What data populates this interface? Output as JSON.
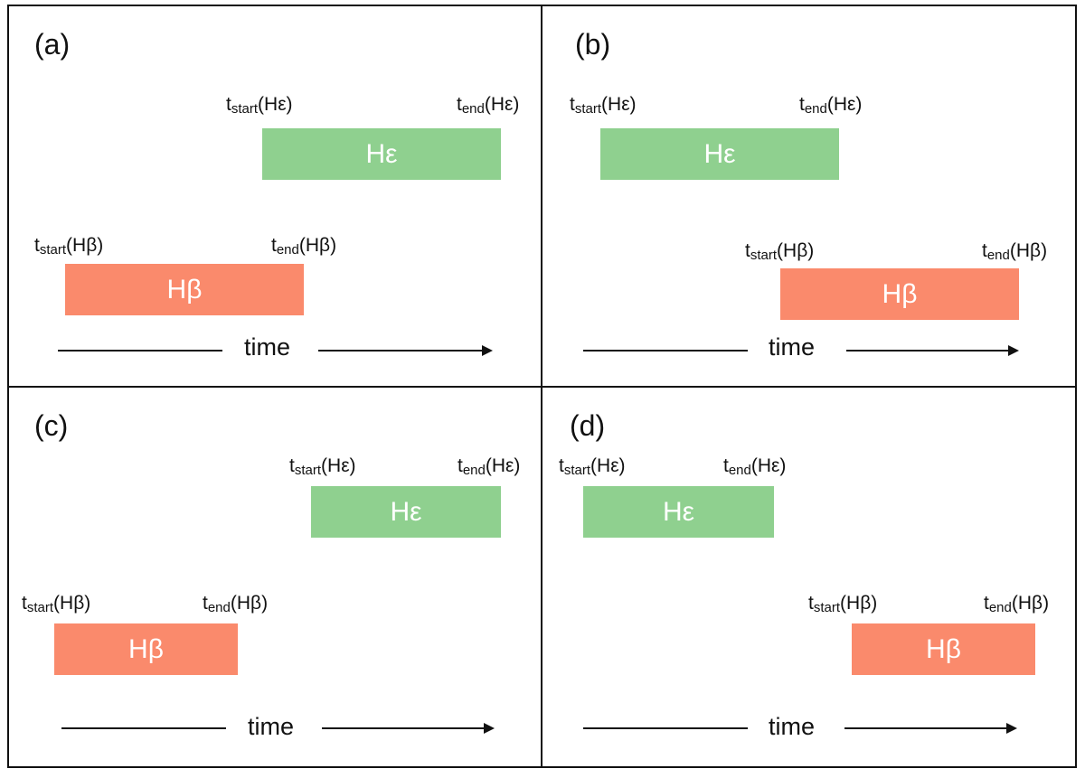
{
  "panels": [
    {
      "letter": "(a)",
      "he": {
        "name": "Hε",
        "start_label": {
          "t": "t",
          "sub": "start",
          "arg": "(Hε)"
        },
        "end_label": {
          "t": "t",
          "sub": "end",
          "arg": "(Hε)"
        }
      },
      "hb": {
        "name": "Hβ",
        "start_label": {
          "t": "t",
          "sub": "start",
          "arg": "(Hβ)"
        },
        "end_label": {
          "t": "t",
          "sub": "end",
          "arg": "(Hβ)"
        }
      },
      "axis_label": "time"
    },
    {
      "letter": "(b)",
      "he": {
        "name": "Hε",
        "start_label": {
          "t": "t",
          "sub": "start",
          "arg": "(Hε)"
        },
        "end_label": {
          "t": "t",
          "sub": "end",
          "arg": "(Hε)"
        }
      },
      "hb": {
        "name": "Hβ",
        "start_label": {
          "t": "t",
          "sub": "start",
          "arg": "(Hβ)"
        },
        "end_label": {
          "t": "t",
          "sub": "end",
          "arg": "(Hβ)"
        }
      },
      "axis_label": "time"
    },
    {
      "letter": "(c)",
      "he": {
        "name": "Hε",
        "start_label": {
          "t": "t",
          "sub": "start",
          "arg": "(Hε)"
        },
        "end_label": {
          "t": "t",
          "sub": "end",
          "arg": "(Hε)"
        }
      },
      "hb": {
        "name": "Hβ",
        "start_label": {
          "t": "t",
          "sub": "start",
          "arg": "(Hβ)"
        },
        "end_label": {
          "t": "t",
          "sub": "end",
          "arg": "(Hβ)"
        }
      },
      "axis_label": "time"
    },
    {
      "letter": "(d)",
      "he": {
        "name": "Hε",
        "start_label": {
          "t": "t",
          "sub": "start",
          "arg": "(Hε)"
        },
        "end_label": {
          "t": "t",
          "sub": "end",
          "arg": "(Hε)"
        }
      },
      "hb": {
        "name": "Hβ",
        "start_label": {
          "t": "t",
          "sub": "start",
          "arg": "(Hβ)"
        },
        "end_label": {
          "t": "t",
          "sub": "end",
          "arg": "(Hβ)"
        }
      },
      "axis_label": "time"
    }
  ],
  "colors": {
    "he_bar": "#8fd08f",
    "hb_bar": "#fa8a6c",
    "bar_text": "#ffffff",
    "lines": "#111111"
  }
}
